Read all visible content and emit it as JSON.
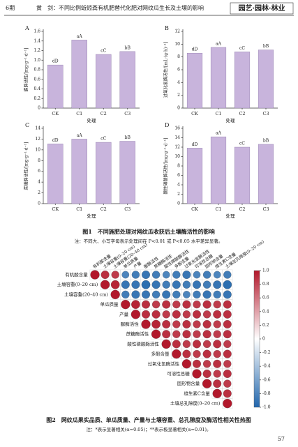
{
  "header": {
    "issue": "6期",
    "running_title": "黄　剑：不同比例蚯蚓粪有机肥替代化肥对网纹瓜生长及土壤的影响",
    "section": "园艺·园林·林业"
  },
  "chart_data": [
    {
      "type": "bar",
      "panel": "A",
      "ylabel": "脲酶活性/[mg·g⁻¹·d⁻¹]",
      "xlabel": "处理",
      "categories": [
        "CK",
        "C1",
        "C2",
        "C3"
      ],
      "values": [
        0.9,
        1.42,
        1.12,
        1.18
      ],
      "annotations": [
        "dD",
        "aA",
        "cC",
        "bB"
      ],
      "color": "#c8b4dc",
      "ylim": [
        0,
        1.6
      ],
      "yticks": [
        0,
        0.2,
        0.4,
        0.6,
        0.8,
        {
          "value": 1,
          "label": "1.0"
        },
        1.2,
        1.4,
        1.6
      ]
    },
    {
      "type": "bar",
      "panel": "B",
      "ylabel": "过氧化氢酶活性/[mL·(g·h)⁻¹]",
      "xlabel": "处理",
      "categories": [
        "CK",
        "C1",
        "C2",
        "C3"
      ],
      "values": [
        8.6,
        9.5,
        8.8,
        9.1
      ],
      "annotations": [
        "dD",
        "aA",
        "cC",
        "bB"
      ],
      "color": "#c8b4dc",
      "ylim": [
        0,
        12
      ],
      "yticks": [
        0,
        2,
        4,
        6,
        8,
        10,
        12
      ]
    },
    {
      "type": "bar",
      "panel": "C",
      "ylabel": "蔗糖酶活性/[mg·g⁻¹·d⁻¹]",
      "xlabel": "处理",
      "categories": [
        "CK",
        "C1",
        "C2",
        "C3"
      ],
      "values": [
        11.1,
        12,
        11.4,
        11.6
      ],
      "annotations": [
        "dD",
        "aA",
        "cC",
        "bB"
      ],
      "color": "#c8b4dc",
      "ylim": [
        0,
        14
      ],
      "yticks": [
        0,
        2,
        4,
        6,
        8,
        10,
        12,
        14
      ]
    },
    {
      "type": "bar",
      "panel": "D",
      "ylabel": "酸性磷酸酶活性/[mg·g⁻¹·d⁻¹]",
      "xlabel": "处理",
      "categories": [
        "CK",
        "C1",
        "C2",
        "C3"
      ],
      "values": [
        11.8,
        14.2,
        12,
        12.6
      ],
      "annotations": [
        "dD",
        "aA",
        "cC",
        "bB"
      ],
      "color": "#c8b4dc",
      "ylim": [
        0,
        16
      ],
      "yticks": [
        0,
        2,
        4,
        6,
        8,
        10,
        12,
        14,
        16
      ]
    },
    {
      "type": "corrplot",
      "labels": [
        "有机酸含量",
        "土壤容重(0–20 cm)",
        "土壤容重(20–40 cm)",
        "单瓜质量",
        "产量",
        "脲酶活性",
        "蔗糖酶活性",
        "酸性磷酸酶活性",
        "多酚含量",
        "过氧化氢酶活性",
        "可溶性总糖",
        "固形物含量",
        "维生素C含量",
        "土壤总孔隙度(0–20 cm)"
      ],
      "matrix": [
        [
          1,
          0.9,
          0.85,
          -0.8,
          -0.85,
          -0.9,
          -0.85,
          -0.8,
          -0.85,
          -0.9,
          -0.8,
          -0.85,
          -0.8,
          -0.85
        ],
        [
          1,
          0.95,
          -0.9,
          -0.9,
          -0.95,
          -0.9,
          -0.85,
          -0.9,
          -0.85,
          -0.9,
          -0.85,
          -0.9,
          -0.95
        ],
        [
          1,
          -0.85,
          -0.9,
          -0.9,
          -0.85,
          -0.9,
          -0.85,
          -0.8,
          -0.85,
          -0.9,
          -0.85,
          -0.9
        ],
        [
          1,
          0.95,
          0.9,
          0.85,
          0.9,
          0.85,
          0.9,
          0.85,
          0.9,
          0.85,
          0.9
        ],
        [
          1,
          0.9,
          0.9,
          0.85,
          0.9,
          0.85,
          0.9,
          0.85,
          0.9,
          0.9
        ],
        [
          1,
          0.95,
          0.9,
          0.85,
          0.9,
          0.85,
          0.9,
          0.85,
          0.9
        ],
        [
          1,
          0.9,
          0.85,
          0.9,
          0.85,
          0.9,
          0.85,
          0.9
        ],
        [
          1,
          0.9,
          0.85,
          0.9,
          0.85,
          0.9,
          0.85
        ],
        [
          1,
          0.9,
          0.85,
          0.9,
          0.85,
          0.9
        ],
        [
          1,
          0.9,
          0.85,
          0.9,
          0.85
        ],
        [
          1,
          0.9,
          0.85,
          0.9
        ],
        [
          1,
          0.9,
          0.85
        ],
        [
          1,
          0.9
        ],
        [
          1
        ]
      ],
      "colors": {
        "positive": "#b2182b",
        "negative": "#2166ac"
      },
      "clim": [
        -1,
        1
      ],
      "colorbar_ticks": [
        {
          "value": 1,
          "label": "1.0"
        },
        0.8,
        0.6,
        0.4,
        0.2,
        0,
        -0.2,
        -0.4,
        -0.6,
        -0.8,
        {
          "value": -1,
          "label": "-1.0"
        }
      ]
    }
  ],
  "figure1": {
    "caption": "图1　不同施肥处理对网纹瓜收获后土壤酶活性的影响",
    "note": "注：不同大、小写字母表示处理间在 P<0.01 或 P<0.05 水平差异显著。"
  },
  "figure2": {
    "caption": "图2　网纹瓜果实品质、单瓜质量、产量与土壤容重、总孔隙度及酶活性相关性热图",
    "note": "注：*表示显著相关(α=0.05)；**表示极显著相关(α=0.01)。"
  },
  "page_number": "57"
}
